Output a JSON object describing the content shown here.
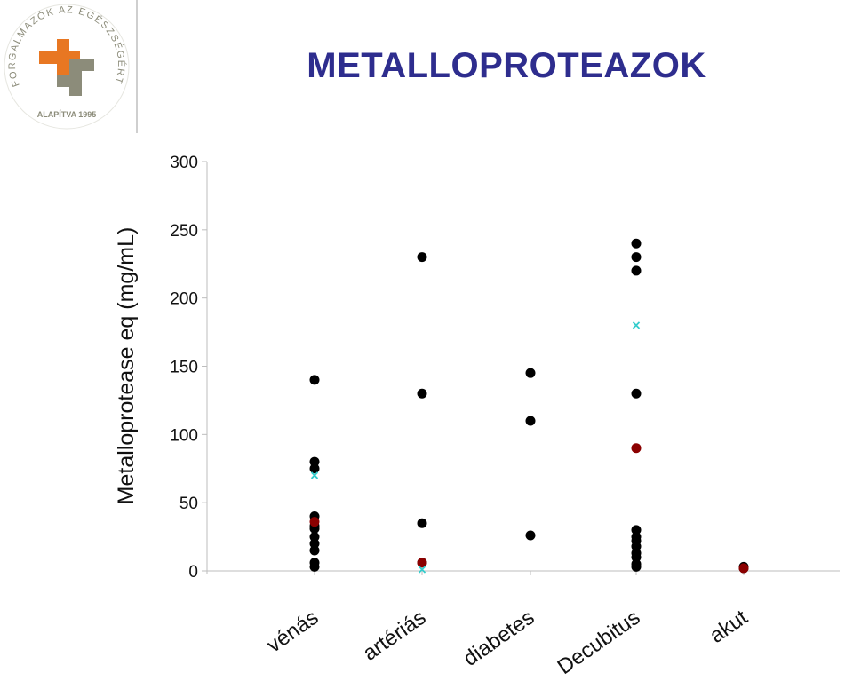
{
  "header": {
    "title": "METALLOPROTEAZOK"
  },
  "logo": {
    "ring_text": "FORGALMAZÓK AZ EGÉSZSÉGÉRT",
    "founded_text": "ALAPÍTVA 1995",
    "colors": {
      "orange": "#e87722",
      "gray": "#8c8c7a"
    }
  },
  "chart_data": {
    "type": "scatter",
    "title": "",
    "xlabel": "",
    "ylabel": "Metalloprotease eq (mg/mL)",
    "categories": [
      "vénás",
      "artériás",
      "diabetes",
      "Decubitus",
      "akut"
    ],
    "ylim": [
      0,
      300
    ],
    "yticks": [
      0,
      50,
      100,
      150,
      200,
      250,
      300
    ],
    "grid": false,
    "legend": "none",
    "series": [
      {
        "marker": "circle",
        "color": "#000000",
        "points": [
          {
            "x": "vénás",
            "y": 140
          },
          {
            "x": "vénás",
            "y": 80
          },
          {
            "x": "vénás",
            "y": 75
          },
          {
            "x": "vénás",
            "y": 40
          },
          {
            "x": "vénás",
            "y": 33
          },
          {
            "x": "vénás",
            "y": 31
          },
          {
            "x": "vénás",
            "y": 25
          },
          {
            "x": "vénás",
            "y": 20
          },
          {
            "x": "vénás",
            "y": 15
          },
          {
            "x": "vénás",
            "y": 6
          },
          {
            "x": "vénás",
            "y": 3
          },
          {
            "x": "artériás",
            "y": 230
          },
          {
            "x": "artériás",
            "y": 130
          },
          {
            "x": "artériás",
            "y": 35
          },
          {
            "x": "artériás",
            "y": 6
          },
          {
            "x": "diabetes",
            "y": 145
          },
          {
            "x": "diabetes",
            "y": 110
          },
          {
            "x": "diabetes",
            "y": 26
          },
          {
            "x": "Decubitus",
            "y": 240
          },
          {
            "x": "Decubitus",
            "y": 230
          },
          {
            "x": "Decubitus",
            "y": 220
          },
          {
            "x": "Decubitus",
            "y": 130
          },
          {
            "x": "Decubitus",
            "y": 30
          },
          {
            "x": "Decubitus",
            "y": 25
          },
          {
            "x": "Decubitus",
            "y": 22
          },
          {
            "x": "Decubitus",
            "y": 18
          },
          {
            "x": "Decubitus",
            "y": 13
          },
          {
            "x": "Decubitus",
            "y": 10
          },
          {
            "x": "Decubitus",
            "y": 5
          },
          {
            "x": "Decubitus",
            "y": 3
          },
          {
            "x": "akut",
            "y": 3
          },
          {
            "x": "akut",
            "y": 2
          }
        ]
      },
      {
        "marker": "circle",
        "color": "#8b0000",
        "points": [
          {
            "x": "vénás",
            "y": 36
          },
          {
            "x": "artériás",
            "y": 6
          },
          {
            "x": "Decubitus",
            "y": 90
          },
          {
            "x": "akut",
            "y": 2
          }
        ]
      },
      {
        "marker": "x",
        "color": "#33cccc",
        "points": [
          {
            "x": "vénás",
            "y": 70
          },
          {
            "x": "artériás",
            "y": 1
          },
          {
            "x": "Decubitus",
            "y": 180
          }
        ]
      }
    ]
  }
}
